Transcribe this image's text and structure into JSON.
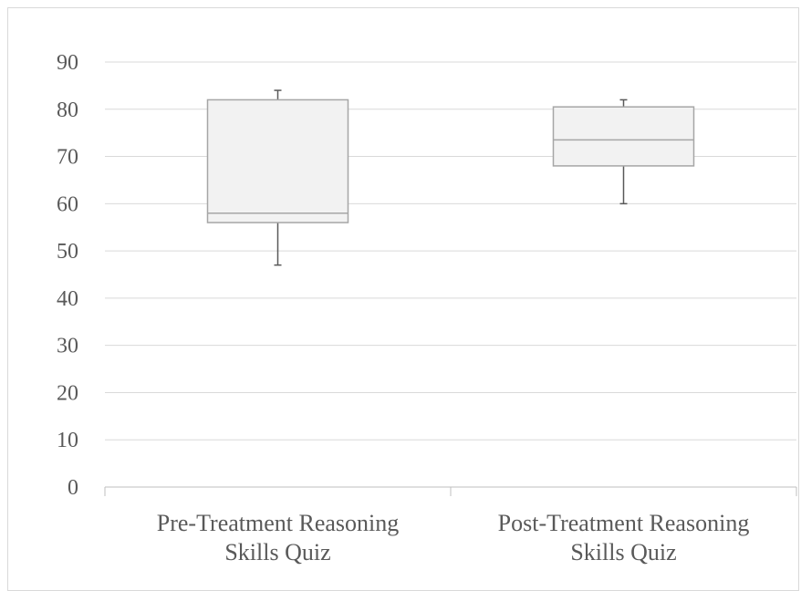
{
  "chart_data": {
    "type": "box",
    "categories": [
      "Pre-Treatment Reasoning Skills Quiz",
      "Post-Treatment Reasoning Skills Quiz"
    ],
    "category_label_lines": [
      [
        "Pre-Treatment Reasoning",
        "Skills Quiz"
      ],
      [
        "Post-Treatment Reasoning",
        "Skills Quiz"
      ]
    ],
    "boxes": [
      {
        "category": "Pre-Treatment Reasoning Skills Quiz",
        "min": 47,
        "q1": 56,
        "median": 58,
        "q3": 82,
        "max": 84
      },
      {
        "category": "Post-Treatment Reasoning Skills Quiz",
        "min": 60,
        "q1": 68,
        "median": 73.5,
        "q3": 80.5,
        "max": 82
      }
    ],
    "ylim": [
      0,
      90
    ],
    "yticks": [
      "0",
      "10",
      "20",
      "30",
      "40",
      "50",
      "60",
      "70",
      "80",
      "90"
    ],
    "grid": true,
    "colors": {
      "box_fill": "#f2f2f2",
      "box_stroke": "#a6a6a6",
      "median": "#a6a6a6",
      "whisker": "#595959",
      "grid": "#d9d9d9",
      "axis": "#bfbfbf",
      "text": "#595959"
    }
  }
}
